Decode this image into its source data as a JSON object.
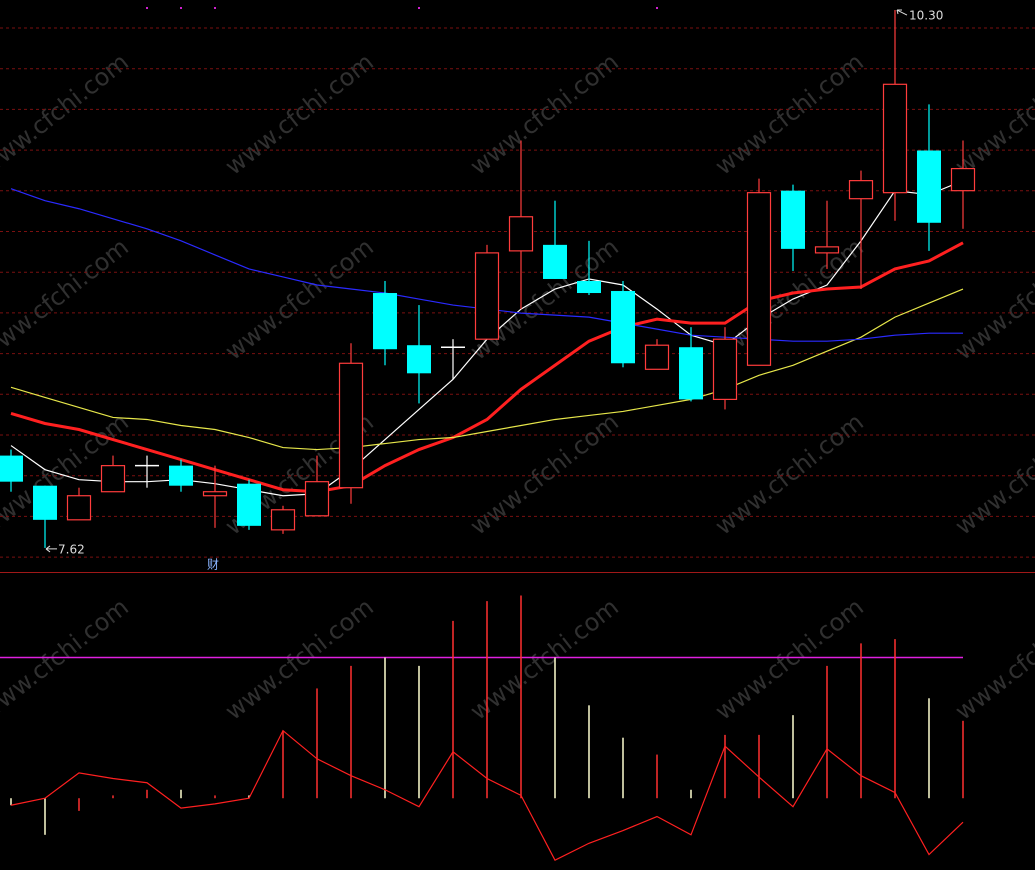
{
  "watermark": "www.cfchi.com",
  "chart_data": [
    {
      "type": "candlestick",
      "open": [
        8.08,
        7.93,
        7.76,
        7.9,
        8.03,
        8.03,
        7.88,
        7.94,
        7.71,
        7.78,
        7.92,
        8.89,
        8.63,
        8.62,
        8.66,
        9.1,
        9.13,
        8.95,
        8.9,
        8.51,
        8.62,
        8.36,
        8.53,
        9.4,
        9.09,
        9.36,
        9.39,
        9.6,
        9.4
      ],
      "high": [
        8.11,
        7.93,
        7.92,
        8.08,
        8.08,
        8.06,
        8.03,
        7.96,
        7.83,
        8.08,
        8.64,
        8.95,
        8.83,
        8.66,
        9.13,
        9.65,
        9.35,
        9.15,
        8.95,
        8.66,
        8.72,
        8.72,
        9.46,
        9.43,
        9.35,
        9.5,
        10.3,
        9.83,
        9.65
      ],
      "low": [
        7.9,
        7.62,
        7.76,
        7.9,
        7.92,
        7.9,
        7.72,
        7.71,
        7.69,
        7.78,
        7.84,
        8.53,
        8.34,
        8.46,
        8.66,
        8.81,
        8.96,
        8.88,
        8.52,
        8.51,
        8.35,
        8.31,
        8.53,
        9.0,
        9.01,
        8.91,
        9.25,
        9.1,
        9.21
      ],
      "close": [
        7.95,
        7.76,
        7.88,
        8.03,
        8.03,
        7.93,
        7.9,
        7.73,
        7.81,
        7.95,
        8.54,
        8.61,
        8.49,
        8.62,
        9.09,
        9.27,
        8.96,
        8.89,
        8.54,
        8.63,
        8.36,
        8.66,
        9.39,
        9.11,
        9.12,
        9.45,
        9.93,
        9.24,
        9.51
      ],
      "up_color": "#ff3c3c",
      "down_color": "#00ffff",
      "flat_color": "#ffffff",
      "ylim": [
        7.5,
        10.35
      ],
      "grid": true,
      "grid_color": "#7a1010",
      "lines": [
        {
          "color": "#ffffff",
          "values": [
            8.13,
            8.01,
            7.96,
            7.95,
            7.95,
            7.96,
            7.94,
            7.91,
            7.88,
            7.89,
            8.01,
            8.16,
            8.31,
            8.46,
            8.66,
            8.81,
            8.91,
            8.96,
            8.93,
            8.81,
            8.68,
            8.63,
            8.76,
            8.86,
            8.93,
            9.15,
            9.4,
            9.38,
            9.45
          ]
        },
        {
          "color": "#ff2020",
          "width": 3,
          "values": [
            8.29,
            8.24,
            8.21,
            8.16,
            8.11,
            8.06,
            8.01,
            7.96,
            7.91,
            7.9,
            7.93,
            8.03,
            8.11,
            8.17,
            8.26,
            8.41,
            8.53,
            8.65,
            8.72,
            8.76,
            8.74,
            8.74,
            8.85,
            8.89,
            8.91,
            8.92,
            9.01,
            9.05,
            9.14
          ]
        },
        {
          "color": "#e6e64a",
          "values": [
            8.42,
            8.37,
            8.32,
            8.27,
            8.26,
            8.23,
            8.21,
            8.17,
            8.12,
            8.11,
            8.12,
            8.14,
            8.16,
            8.17,
            8.2,
            8.23,
            8.26,
            8.28,
            8.3,
            8.33,
            8.36,
            8.41,
            8.48,
            8.53,
            8.6,
            8.67,
            8.77,
            8.84,
            8.91
          ]
        },
        {
          "color": "#2a2aff",
          "values": [
            9.41,
            9.35,
            9.31,
            9.26,
            9.21,
            9.15,
            9.08,
            9.01,
            8.97,
            8.93,
            8.91,
            8.89,
            8.86,
            8.83,
            8.81,
            8.79,
            8.78,
            8.77,
            8.74,
            8.71,
            8.68,
            8.67,
            8.66,
            8.65,
            8.65,
            8.66,
            8.68,
            8.69,
            8.69
          ]
        }
      ],
      "high_label": "10.30",
      "low_label": "7.62",
      "events": [
        {
          "index": 6,
          "label": "财"
        }
      ]
    },
    {
      "type": "bar_line",
      "values": [
        -5,
        -26,
        -9,
        2,
        6,
        6,
        2,
        2,
        48,
        78,
        94,
        100,
        94,
        126,
        140,
        144,
        100,
        66,
        43,
        31,
        6,
        45,
        45,
        59,
        94,
        110,
        113,
        71,
        55
      ],
      "up_color": "#ff3030",
      "down_color": "#ffffd0",
      "ylim": [
        -51,
        160
      ],
      "reference_line": 100,
      "reference_color": "#e020e0",
      "line": {
        "color": "#ff2020",
        "values": [
          -5,
          0,
          18,
          14,
          11,
          -7,
          -4,
          0,
          48,
          28,
          16,
          6,
          -6,
          33,
          14,
          2,
          -44,
          -32,
          -23,
          -13,
          -26,
          37,
          15,
          -6,
          35,
          16,
          4,
          -40,
          -17
        ]
      }
    }
  ]
}
